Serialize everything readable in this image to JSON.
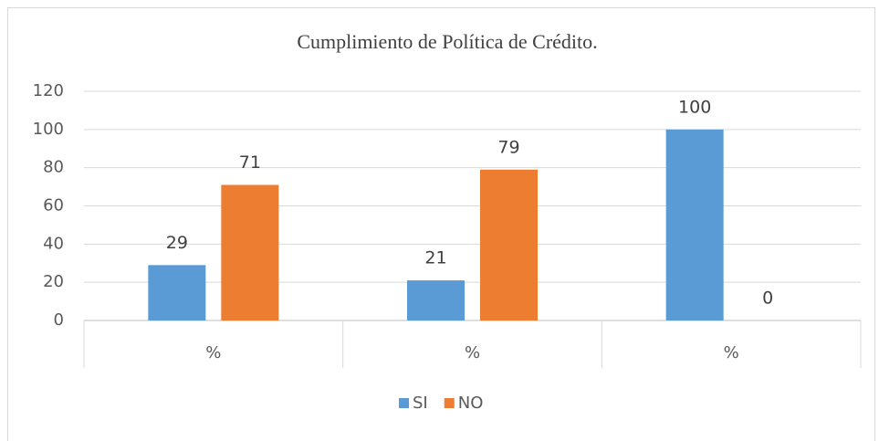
{
  "chart_data": {
    "type": "bar",
    "title": "Cumplimiento de Política de Crédito.",
    "categories": [
      "%",
      "%",
      "%"
    ],
    "series": [
      {
        "name": "SI",
        "color": "#5b9bd5",
        "values": [
          29,
          21,
          100
        ]
      },
      {
        "name": "NO",
        "color": "#ed7d31",
        "values": [
          71,
          79,
          0
        ]
      }
    ],
    "ylim": [
      0,
      120
    ],
    "yticks": [
      0,
      20,
      40,
      60,
      80,
      100,
      120
    ],
    "grid": true,
    "legend": "bottom"
  }
}
